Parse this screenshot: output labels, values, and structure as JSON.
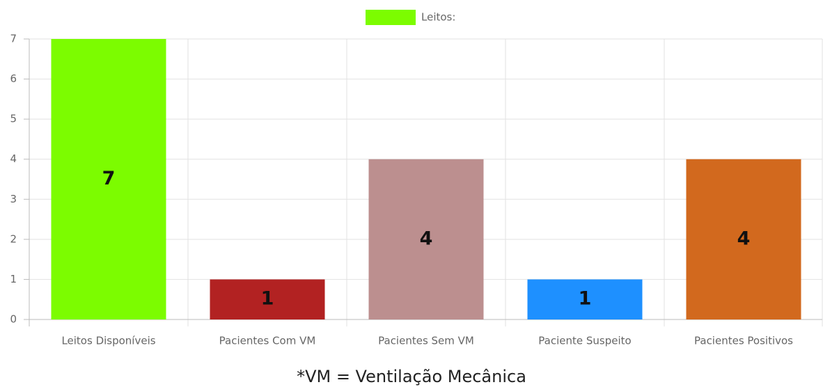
{
  "chart_data": {
    "type": "bar",
    "categories": [
      "Leitos Disponíveis",
      "Pacientes Com VM",
      "Pacientes Sem VM",
      "Paciente Suspeito",
      "Pacientes Positivos"
    ],
    "series": [
      {
        "name": "Leitos:",
        "color": "#7cfc00",
        "values": [
          7,
          1,
          4,
          1,
          4
        ],
        "colors": [
          "#7cfc00",
          "#b22222",
          "#bc8f8f",
          "#1e90ff",
          "#d2691e"
        ]
      }
    ],
    "ylim": [
      0,
      7
    ],
    "yticks": [
      0,
      1,
      2,
      3,
      4,
      5,
      6,
      7
    ],
    "grid": true,
    "legend": "top",
    "footnote": "*VM = Ventilação Mecânica"
  }
}
